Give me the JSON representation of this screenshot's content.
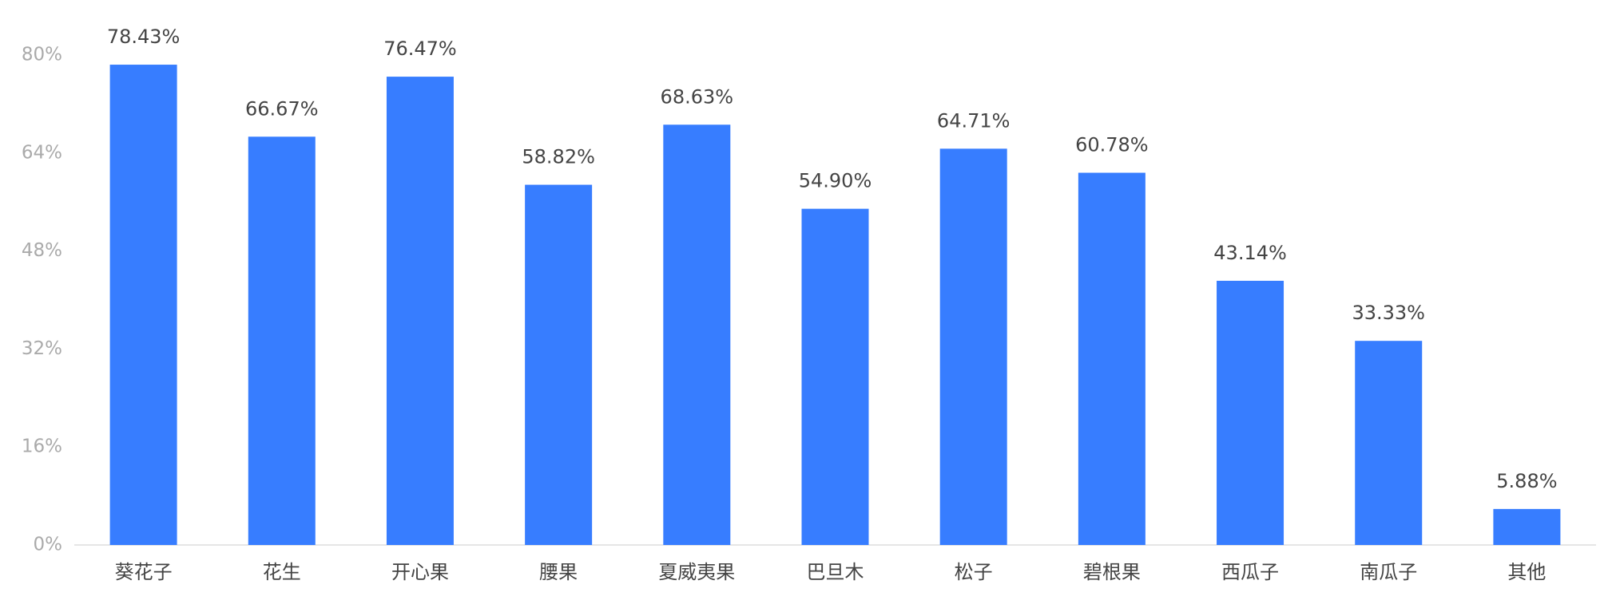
{
  "chart_data": {
    "type": "bar",
    "categories": [
      "葵花子",
      "花生",
      "开心果",
      "腰果",
      "夏威夷果",
      "巴旦木",
      "松子",
      "碧根果",
      "西瓜子",
      "南瓜子",
      "其他"
    ],
    "values": [
      78.43,
      66.67,
      76.47,
      58.82,
      68.63,
      54.9,
      64.71,
      60.78,
      43.14,
      33.33,
      5.88
    ],
    "value_labels": [
      "78.43%",
      "66.67%",
      "76.47%",
      "58.82%",
      "68.63%",
      "54.90%",
      "64.71%",
      "60.78%",
      "43.14%",
      "33.33%",
      "5.88%"
    ],
    "color": "#377dff",
    "ylim": [
      0,
      80
    ],
    "yticks": [
      {
        "value": 0,
        "label": "0%"
      },
      {
        "value": 16,
        "label": "16%"
      },
      {
        "value": 32,
        "label": "32%"
      },
      {
        "value": 48,
        "label": "48%"
      },
      {
        "value": 64,
        "label": "64%"
      },
      {
        "value": 80,
        "label": "80%"
      }
    ],
    "grid": false
  }
}
